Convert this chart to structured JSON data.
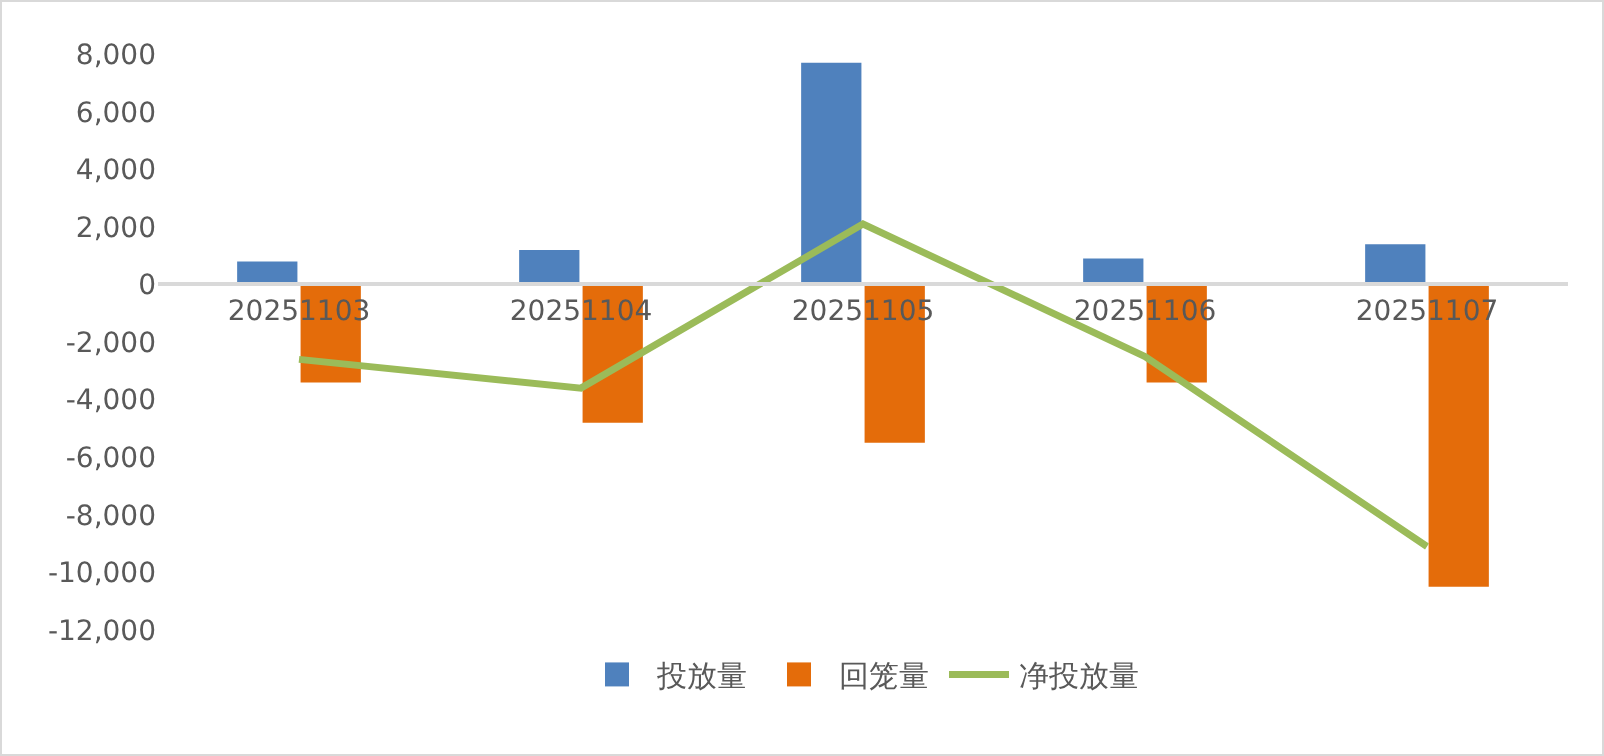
{
  "chart_data": {
    "type": "bar",
    "categories": [
      "20251103",
      "20251104",
      "20251105",
      "20251106",
      "20251107"
    ],
    "series": [
      {
        "name": "投放量",
        "color": "#4f81bd",
        "values": [
          800,
          1200,
          7700,
          900,
          1400
        ]
      },
      {
        "name": "回笼量",
        "color": "#e46c0a",
        "values": [
          -3400,
          -4800,
          -5500,
          -3400,
          -10500
        ]
      },
      {
        "name": "净投放量",
        "type": "line",
        "color": "#9bbb59",
        "values": [
          -2600,
          -3600,
          2100,
          -2500,
          -9100
        ]
      }
    ],
    "ylim": [
      -12000,
      8000
    ],
    "yticks": [
      {
        "value": -12000,
        "label": "-12,000"
      },
      {
        "value": -10000,
        "label": "-10,000"
      },
      {
        "value": -8000,
        "label": "-8,000"
      },
      {
        "value": -6000,
        "label": "-6,000"
      },
      {
        "value": -4000,
        "label": "-4,000"
      },
      {
        "value": -2000,
        "label": "-2,000"
      },
      0,
      {
        "value": 2000,
        "label": "2,000"
      },
      {
        "value": 4000,
        "label": "4,000"
      },
      {
        "value": 6000,
        "label": "6,000"
      },
      {
        "value": 8000,
        "label": "8,000"
      }
    ],
    "grid": false,
    "legend": "bottom",
    "marker": "none",
    "line_style": "solid"
  }
}
